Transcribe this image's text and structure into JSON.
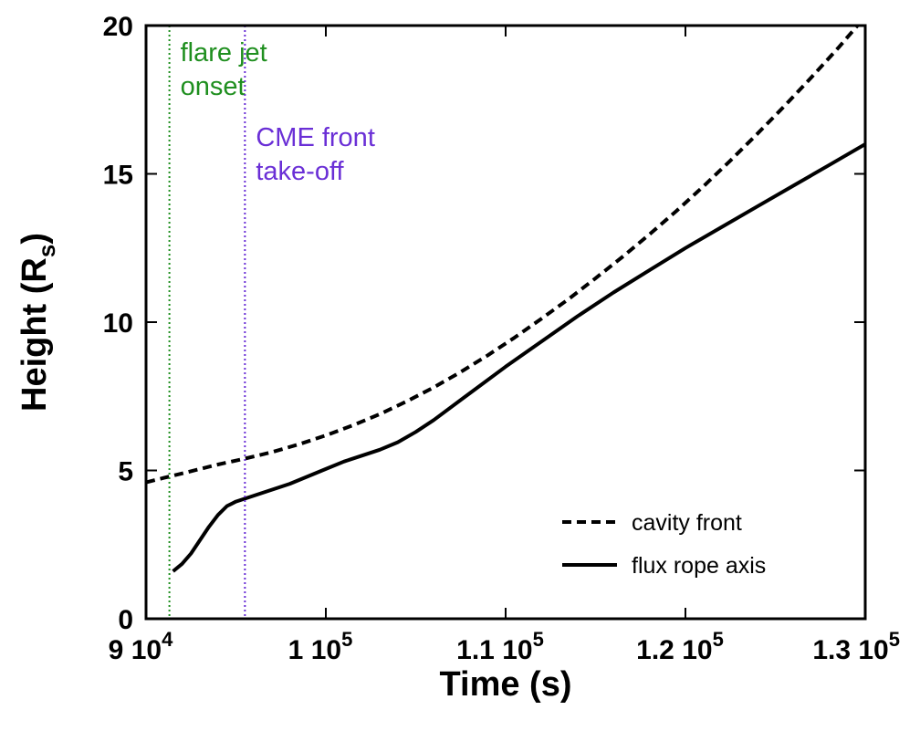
{
  "chart_data": {
    "type": "line",
    "title": "",
    "xlabel": "Time (s)",
    "ylabel_main": "Height (R",
    "ylabel_sub": "s",
    "ylabel_close": ")",
    "xlim": [
      90000,
      130000
    ],
    "ylim": [
      0,
      20
    ],
    "x_ticks": [
      {
        "value": 90000,
        "mantissa": "9 10",
        "exp": "4"
      },
      {
        "value": 100000,
        "mantissa": "1 10",
        "exp": "5"
      },
      {
        "value": 110000,
        "mantissa": "1.1 10",
        "exp": "5"
      },
      {
        "value": 120000,
        "mantissa": "1.2 10",
        "exp": "5"
      },
      {
        "value": 130000,
        "mantissa": "1.3 10",
        "exp": "5"
      }
    ],
    "y_ticks": [
      0,
      5,
      10,
      15,
      20
    ],
    "y_tick_labels": [
      "0",
      "5",
      "10",
      "15",
      "20"
    ],
    "grid": false,
    "legend_position": "bottom-right",
    "series": [
      {
        "name": "cavity front",
        "style": "dashed",
        "color": "#000000",
        "x": [
          90000,
          91000,
          92000,
          93000,
          94000,
          95500,
          97000,
          98500,
          100000,
          101500,
          103000,
          104500,
          106000,
          107500,
          109000,
          110500,
          112000,
          113500,
          115000,
          116500,
          118000,
          119500,
          121000,
          122500,
          124000,
          125500,
          127000,
          128500,
          130000
        ],
        "y": [
          4.6,
          4.75,
          4.9,
          5.05,
          5.2,
          5.4,
          5.62,
          5.88,
          6.18,
          6.52,
          6.9,
          7.33,
          7.8,
          8.32,
          8.88,
          9.48,
          10.12,
          10.78,
          11.48,
          12.2,
          12.96,
          13.75,
          14.58,
          15.45,
          16.35,
          17.28,
          18.25,
          19.25,
          20.3
        ]
      },
      {
        "name": "flux rope axis",
        "style": "solid",
        "color": "#000000",
        "x": [
          91500,
          92000,
          92500,
          93000,
          93500,
          94000,
          94500,
          95000,
          96000,
          97000,
          98000,
          99000,
          100000,
          101000,
          102000,
          103000,
          104000,
          105000,
          106000,
          108000,
          110000,
          112000,
          114000,
          116000,
          118000,
          120000,
          122000,
          124000,
          126000,
          128000,
          130000
        ],
        "y": [
          1.6,
          1.85,
          2.2,
          2.65,
          3.1,
          3.5,
          3.8,
          3.95,
          4.15,
          4.35,
          4.55,
          4.8,
          5.05,
          5.3,
          5.5,
          5.7,
          5.95,
          6.3,
          6.7,
          7.6,
          8.5,
          9.35,
          10.2,
          11.0,
          11.75,
          12.5,
          13.2,
          13.9,
          14.6,
          15.3,
          16.0
        ]
      }
    ],
    "vertical_lines": [
      {
        "x": 91300,
        "color": "#1f8f1f",
        "style": "dotted",
        "label_lines": [
          "flare jet",
          "onset"
        ]
      },
      {
        "x": 95500,
        "color": "#6a2fd6",
        "style": "dotted",
        "label_lines": [
          "CME front",
          "take-off"
        ]
      }
    ]
  }
}
